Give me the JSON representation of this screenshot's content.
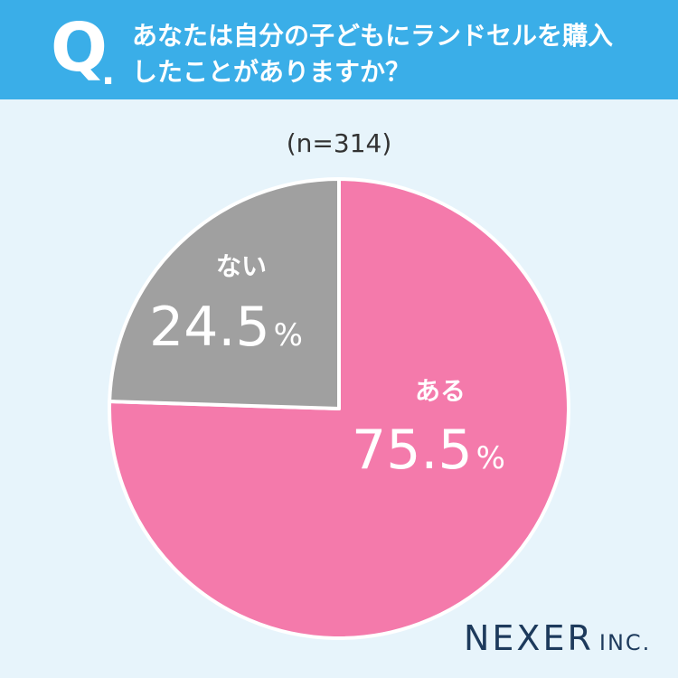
{
  "header": {
    "q_letter": "Q",
    "q_dot": ".",
    "question_line1": "あなたは自分の子どもにランドセルを購入",
    "question_line2": "したことがありますか？"
  },
  "sample_size": "(n=314)",
  "chart_data": {
    "type": "pie",
    "start": "12-o'clock",
    "direction": "clockwise",
    "slices": [
      {
        "label": "ある",
        "value": 75.5,
        "value_text": "75.5",
        "unit": "%",
        "color": "#f47aab"
      },
      {
        "label": "ない",
        "value": 24.5,
        "value_text": "24.5",
        "unit": "%",
        "color": "#a0a0a0"
      }
    ]
  },
  "logo": {
    "main": "NEXER",
    "suffix": "INC."
  },
  "colors": {
    "header_bg": "#3aaee8",
    "page_bg": "#e7f4fb",
    "label_text": "#ffffff",
    "logo_text": "#1d3a5c"
  }
}
